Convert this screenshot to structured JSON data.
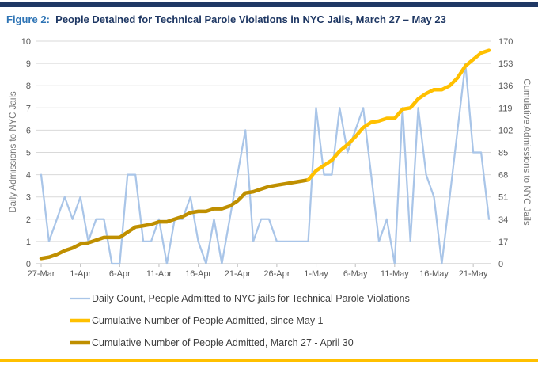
{
  "page": {
    "top_bar_color": "#1F3864",
    "bottom_rule_color": "#FFC000",
    "background": "#FFFFFF"
  },
  "title": {
    "prefix": "Figure 2:",
    "text": "People Detained for Technical Parole Violations in NYC Jails, March 27 – May 23"
  },
  "chart_data": {
    "type": "line",
    "title": "Figure 2: People Detained for Technical Parole Violations in NYC Jails, March 27 – May 23",
    "grid": true,
    "legend_position": "bottom",
    "x_dates": [
      "27-Mar",
      "28-Mar",
      "29-Mar",
      "30-Mar",
      "31-Mar",
      "1-Apr",
      "2-Apr",
      "3-Apr",
      "4-Apr",
      "5-Apr",
      "6-Apr",
      "7-Apr",
      "8-Apr",
      "9-Apr",
      "10-Apr",
      "11-Apr",
      "12-Apr",
      "13-Apr",
      "14-Apr",
      "15-Apr",
      "16-Apr",
      "17-Apr",
      "18-Apr",
      "19-Apr",
      "20-Apr",
      "21-Apr",
      "22-Apr",
      "23-Apr",
      "24-Apr",
      "25-Apr",
      "26-Apr",
      "27-Apr",
      "28-Apr",
      "29-Apr",
      "30-Apr",
      "1-May",
      "2-May",
      "3-May",
      "4-May",
      "5-May",
      "6-May",
      "7-May",
      "8-May",
      "9-May",
      "10-May",
      "11-May",
      "12-May",
      "13-May",
      "14-May",
      "15-May",
      "16-May",
      "17-May",
      "18-May",
      "19-May",
      "20-May",
      "21-May",
      "22-May",
      "23-May"
    ],
    "x_tick_labels": [
      "27-Mar",
      "1-Apr",
      "6-Apr",
      "11-Apr",
      "16-Apr",
      "21-Apr",
      "26-Apr",
      "1-May",
      "6-May",
      "11-May",
      "16-May",
      "21-May"
    ],
    "x_tick_every": 5,
    "left_axis": {
      "label": "Daily Admissions to NYC Jails",
      "min": 0,
      "max": 10,
      "step": 1
    },
    "right_axis": {
      "label": "Cumulative Admissions to NYC Jails",
      "min": 0,
      "max": 170,
      "step": 17
    },
    "series": [
      {
        "name": "Daily Count, People Admitted to NYC jails for Technical Parole Violations",
        "axis": "left",
        "color": "#A9C5E8",
        "stroke_width": 2.25,
        "start_index": 0,
        "values": [
          4,
          1,
          2,
          3,
          2,
          3,
          1,
          2,
          2,
          0,
          0,
          4,
          4,
          1,
          1,
          2,
          0,
          2,
          2,
          3,
          1,
          0,
          2,
          0,
          2,
          4,
          6,
          1,
          2,
          2,
          1,
          1,
          1,
          1,
          1,
          7,
          4,
          4,
          7,
          5,
          6,
          7,
          4,
          1,
          2,
          0,
          7,
          1,
          7,
          4,
          3,
          0,
          3,
          6,
          9,
          5,
          5,
          2
        ]
      },
      {
        "name": "Cumulative Number of People Admitted, since May 1",
        "axis": "right",
        "color": "#FFC000",
        "stroke_width": 4.5,
        "start_index": 34,
        "values": [
          64,
          71,
          75,
          79,
          86,
          91,
          97,
          104,
          108,
          109,
          111,
          111,
          118,
          119,
          126,
          130,
          133,
          133,
          136,
          142,
          151,
          156,
          161,
          163
        ]
      },
      {
        "name": "Cumulative Number of People Admitted, March 27 - April 30",
        "axis": "right",
        "color": "#BF8F00",
        "stroke_width": 4.5,
        "start_index": 0,
        "values": [
          4,
          5,
          7,
          10,
          12,
          15,
          16,
          18,
          20,
          20,
          20,
          24,
          28,
          29,
          30,
          32,
          32,
          34,
          36,
          39,
          40,
          40,
          42,
          42,
          44,
          48,
          54,
          55,
          57,
          59,
          60,
          61,
          62,
          63,
          64
        ]
      }
    ],
    "colors": {
      "gridline": "#D9D9D9",
      "axis_line": "#BFBFBF",
      "tick_text": "#595959"
    }
  }
}
